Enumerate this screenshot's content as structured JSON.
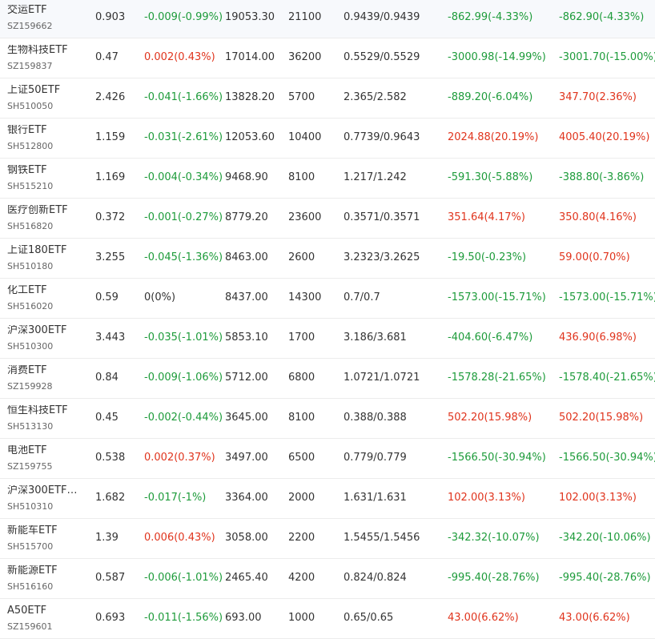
{
  "colors": {
    "up": "#e0341d",
    "down": "#1d9b3a",
    "flat": "#333333"
  },
  "rows": [
    {
      "name": "交运ETF",
      "code": "SZ159662",
      "price": "0.903",
      "change": "-0.009(-0.99%)",
      "change_dir": "down",
      "value": "19053.30",
      "qty": "21100",
      "cost": "0.9439/0.9439",
      "pl": "-862.99(-4.33%)",
      "pl_dir": "down",
      "pl2": "-862.90(-4.33%)",
      "pl2_dir": "down"
    },
    {
      "name": "生物科技ETF",
      "code": "SZ159837",
      "price": "0.47",
      "change": "0.002(0.43%)",
      "change_dir": "up",
      "value": "17014.00",
      "qty": "36200",
      "cost": "0.5529/0.5529",
      "pl": "-3000.98(-14.99%)",
      "pl_dir": "down",
      "pl2": "-3001.70(-15.00%)",
      "pl2_dir": "down"
    },
    {
      "name": "上证50ETF",
      "code": "SH510050",
      "price": "2.426",
      "change": "-0.041(-1.66%)",
      "change_dir": "down",
      "value": "13828.20",
      "qty": "5700",
      "cost": "2.365/2.582",
      "pl": "-889.20(-6.04%)",
      "pl_dir": "down",
      "pl2": "347.70(2.36%)",
      "pl2_dir": "up"
    },
    {
      "name": "银行ETF",
      "code": "SH512800",
      "price": "1.159",
      "change": "-0.031(-2.61%)",
      "change_dir": "down",
      "value": "12053.60",
      "qty": "10400",
      "cost": "0.7739/0.9643",
      "pl": "2024.88(20.19%)",
      "pl_dir": "up",
      "pl2": "4005.40(20.19%)",
      "pl2_dir": "up"
    },
    {
      "name": "钢铁ETF",
      "code": "SH515210",
      "price": "1.169",
      "change": "-0.004(-0.34%)",
      "change_dir": "down",
      "value": "9468.90",
      "qty": "8100",
      "cost": "1.217/1.242",
      "pl": "-591.30(-5.88%)",
      "pl_dir": "down",
      "pl2": "-388.80(-3.86%)",
      "pl2_dir": "down"
    },
    {
      "name": "医疗创新ETF",
      "code": "SH516820",
      "price": "0.372",
      "change": "-0.001(-0.27%)",
      "change_dir": "down",
      "value": "8779.20",
      "qty": "23600",
      "cost": "0.3571/0.3571",
      "pl": "351.64(4.17%)",
      "pl_dir": "up",
      "pl2": "350.80(4.16%)",
      "pl2_dir": "up"
    },
    {
      "name": "上证180ETF",
      "code": "SH510180",
      "price": "3.255",
      "change": "-0.045(-1.36%)",
      "change_dir": "down",
      "value": "8463.00",
      "qty": "2600",
      "cost": "3.2323/3.2625",
      "pl": "-19.50(-0.23%)",
      "pl_dir": "down",
      "pl2": "59.00(0.70%)",
      "pl2_dir": "up"
    },
    {
      "name": "化工ETF",
      "code": "SH516020",
      "price": "0.59",
      "change": "0(0%)",
      "change_dir": "flat",
      "value": "8437.00",
      "qty": "14300",
      "cost": "0.7/0.7",
      "pl": "-1573.00(-15.71%)",
      "pl_dir": "down",
      "pl2": "-1573.00(-15.71%)",
      "pl2_dir": "down"
    },
    {
      "name": "沪深300ETF",
      "code": "SH510300",
      "price": "3.443",
      "change": "-0.035(-1.01%)",
      "change_dir": "down",
      "value": "5853.10",
      "qty": "1700",
      "cost": "3.186/3.681",
      "pl": "-404.60(-6.47%)",
      "pl_dir": "down",
      "pl2": "436.90(6.98%)",
      "pl2_dir": "up"
    },
    {
      "name": "消费ETF",
      "code": "SZ159928",
      "price": "0.84",
      "change": "-0.009(-1.06%)",
      "change_dir": "down",
      "value": "5712.00",
      "qty": "6800",
      "cost": "1.0721/1.0721",
      "pl": "-1578.28(-21.65%)",
      "pl_dir": "down",
      "pl2": "-1578.40(-21.65%)",
      "pl2_dir": "down"
    },
    {
      "name": "恒生科技ETF",
      "code": "SH513130",
      "price": "0.45",
      "change": "-0.002(-0.44%)",
      "change_dir": "down",
      "value": "3645.00",
      "qty": "8100",
      "cost": "0.388/0.388",
      "pl": "502.20(15.98%)",
      "pl_dir": "up",
      "pl2": "502.20(15.98%)",
      "pl2_dir": "up"
    },
    {
      "name": "电池ETF",
      "code": "SZ159755",
      "price": "0.538",
      "change": "0.002(0.37%)",
      "change_dir": "up",
      "value": "3497.00",
      "qty": "6500",
      "cost": "0.779/0.779",
      "pl": "-1566.50(-30.94%)",
      "pl_dir": "down",
      "pl2": "-1566.50(-30.94%)",
      "pl2_dir": "down"
    },
    {
      "name": "沪深300ETF…",
      "code": "SH510310",
      "price": "1.682",
      "change": "-0.017(-1%)",
      "change_dir": "down",
      "value": "3364.00",
      "qty": "2000",
      "cost": "1.631/1.631",
      "pl": "102.00(3.13%)",
      "pl_dir": "up",
      "pl2": "102.00(3.13%)",
      "pl2_dir": "up"
    },
    {
      "name": "新能车ETF",
      "code": "SH515700",
      "price": "1.39",
      "change": "0.006(0.43%)",
      "change_dir": "up",
      "value": "3058.00",
      "qty": "2200",
      "cost": "1.5455/1.5456",
      "pl": "-342.32(-10.07%)",
      "pl_dir": "down",
      "pl2": "-342.20(-10.06%)",
      "pl2_dir": "down"
    },
    {
      "name": "新能源ETF",
      "code": "SH516160",
      "price": "0.587",
      "change": "-0.006(-1.01%)",
      "change_dir": "down",
      "value": "2465.40",
      "qty": "4200",
      "cost": "0.824/0.824",
      "pl": "-995.40(-28.76%)",
      "pl_dir": "down",
      "pl2": "-995.40(-28.76%)",
      "pl2_dir": "down"
    },
    {
      "name": "A50ETF",
      "code": "SZ159601",
      "price": "0.693",
      "change": "-0.011(-1.56%)",
      "change_dir": "down",
      "value": "693.00",
      "qty": "1000",
      "cost": "0.65/0.65",
      "pl": "43.00(6.62%)",
      "pl_dir": "up",
      "pl2": "43.00(6.62%)",
      "pl2_dir": "up"
    }
  ]
}
